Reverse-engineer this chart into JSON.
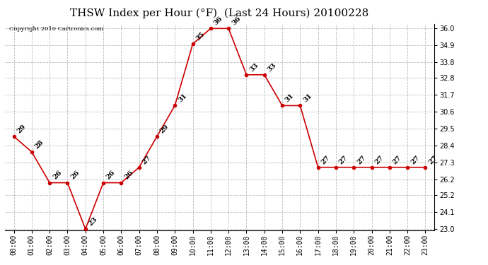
{
  "title": "THSW Index per Hour (°F)  (Last 24 Hours) 20100228",
  "copyright": "Copyright 2010 Cartronics.com",
  "hours": [
    "00:00",
    "01:00",
    "02:00",
    "03:00",
    "04:00",
    "05:00",
    "06:00",
    "07:00",
    "08:00",
    "09:00",
    "10:00",
    "11:00",
    "12:00",
    "13:00",
    "14:00",
    "15:00",
    "16:00",
    "17:00",
    "18:00",
    "19:00",
    "20:00",
    "21:00",
    "22:00",
    "23:00"
  ],
  "values": [
    29,
    28,
    26,
    26,
    23,
    26,
    26,
    27,
    29,
    31,
    35,
    36,
    36,
    33,
    33,
    31,
    31,
    27,
    27,
    27,
    27,
    27,
    27,
    27
  ],
  "ylim_min": 23.0,
  "ylim_max": 36.0,
  "yticks": [
    23.0,
    24.1,
    25.2,
    26.2,
    27.3,
    28.4,
    29.5,
    30.6,
    31.7,
    32.8,
    33.8,
    34.9,
    36.0
  ],
  "line_color": "#cc0000",
  "marker_color": "#cc0000",
  "bg_color": "#ffffff",
  "grid_color": "#bbbbbb",
  "title_fontsize": 11,
  "tick_fontsize": 7,
  "annotation_fontsize": 7,
  "copyright_fontsize": 6
}
